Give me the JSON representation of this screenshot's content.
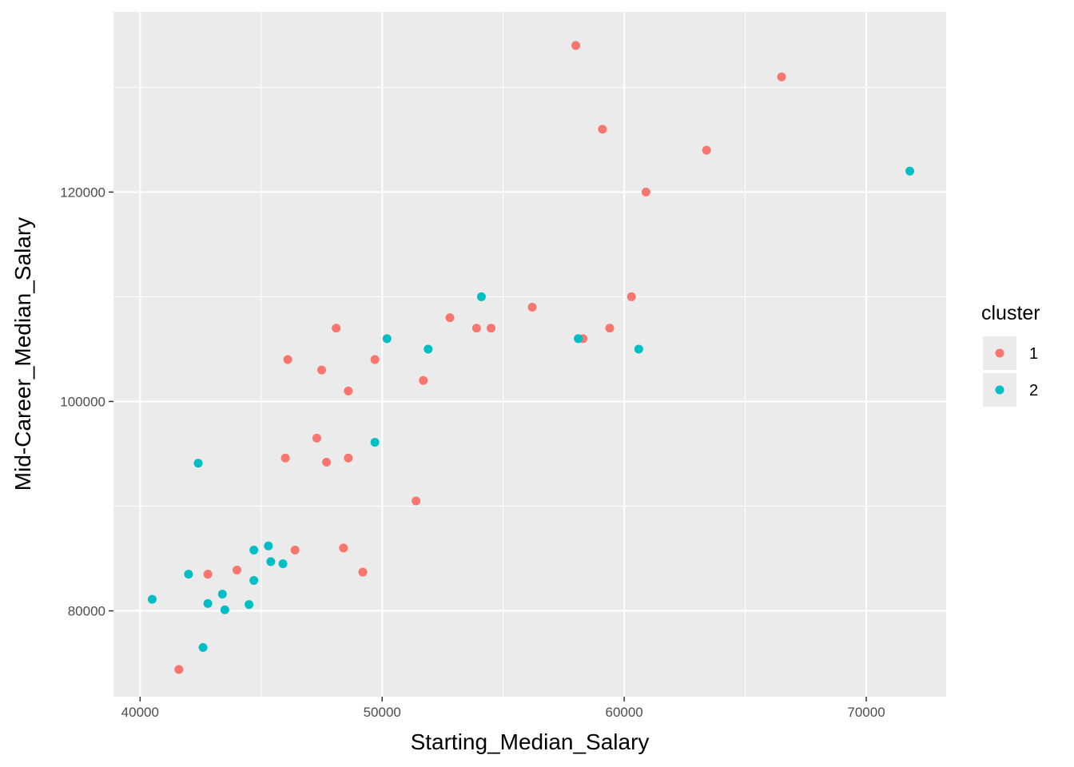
{
  "chart_data": {
    "type": "scatter",
    "title": "",
    "xlabel": "Starting_Median_Salary",
    "ylabel": "Mid-Career_Median_Salary",
    "xlim": [
      38900,
      73300
    ],
    "ylim": [
      71800,
      137200
    ],
    "x_major_ticks": [
      40000,
      50000,
      60000,
      70000
    ],
    "x_tick_labels": [
      "40000",
      "50000",
      "60000",
      "70000"
    ],
    "x_minor_ticks": [
      45000,
      55000,
      65000
    ],
    "y_major_ticks": [
      80000,
      100000,
      120000
    ],
    "y_tick_labels": [
      "80000",
      "100000",
      "120000"
    ],
    "y_minor_ticks": [
      90000,
      110000,
      130000
    ],
    "grid": true,
    "legend": {
      "title": "cluster",
      "position": "right"
    },
    "series": [
      {
        "name": "1",
        "color": "#F8766D",
        "points": [
          [
            41600,
            74400
          ],
          [
            42800,
            83500
          ],
          [
            44000,
            83900
          ],
          [
            46000,
            94600
          ],
          [
            46100,
            104000
          ],
          [
            46400,
            85800
          ],
          [
            47300,
            96500
          ],
          [
            47500,
            103000
          ],
          [
            47700,
            94200
          ],
          [
            48100,
            107000
          ],
          [
            48400,
            86000
          ],
          [
            48600,
            101000
          ],
          [
            48600,
            94600
          ],
          [
            49200,
            83700
          ],
          [
            49700,
            104000
          ],
          [
            51400,
            90500
          ],
          [
            51700,
            102000
          ],
          [
            52800,
            108000
          ],
          [
            53900,
            107000
          ],
          [
            54500,
            107000
          ],
          [
            56200,
            109000
          ],
          [
            58000,
            134000
          ],
          [
            58300,
            106000
          ],
          [
            59100,
            126000
          ],
          [
            59400,
            107000
          ],
          [
            60300,
            110000
          ],
          [
            60900,
            120000
          ],
          [
            63400,
            124000
          ],
          [
            66500,
            131000
          ]
        ]
      },
      {
        "name": "2",
        "color": "#00BFC4",
        "points": [
          [
            40500,
            81100
          ],
          [
            42000,
            83500
          ],
          [
            42400,
            94100
          ],
          [
            42600,
            76500
          ],
          [
            42800,
            80700
          ],
          [
            43400,
            81600
          ],
          [
            43500,
            80100
          ],
          [
            44500,
            80600
          ],
          [
            44700,
            85800
          ],
          [
            44700,
            82900
          ],
          [
            45300,
            86200
          ],
          [
            45400,
            84700
          ],
          [
            45900,
            84500
          ],
          [
            49700,
            96100
          ],
          [
            50200,
            106000
          ],
          [
            51900,
            105000
          ],
          [
            54100,
            110000
          ],
          [
            58100,
            106000
          ],
          [
            60600,
            105000
          ],
          [
            71800,
            122000
          ]
        ]
      }
    ]
  }
}
